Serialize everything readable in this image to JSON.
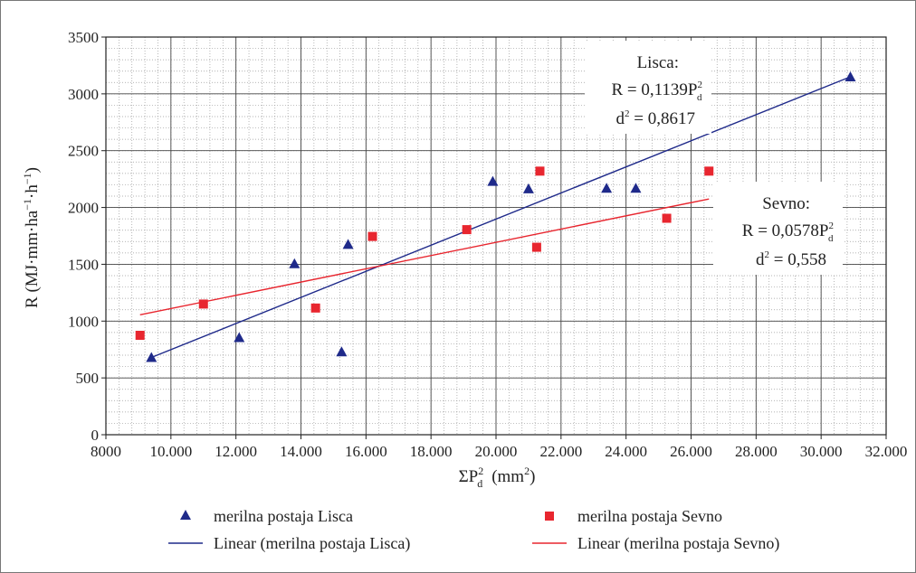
{
  "chart_data": {
    "type": "scatter",
    "xlabel": "ΣP",
    "xlabel_sup": "2",
    "xlabel_sub": "d",
    "xlabel_unit": "(mm",
    "xlabel_unit_sup": "2",
    "xlabel_unit_close": ")",
    "ylabel": "R (MJ·mm·ha⁻¹·h⁻¹)",
    "xlim": [
      8000,
      32000
    ],
    "ylim": [
      0,
      3500
    ],
    "x_ticks": [
      8000,
      10000,
      12000,
      14000,
      16000,
      18000,
      20000,
      22000,
      24000,
      26000,
      28000,
      30000,
      32000
    ],
    "x_tick_labels": [
      "8000",
      "10.000",
      "12.000",
      "14.000",
      "16.000",
      "18.000",
      "20.000",
      "22.000",
      "24.000",
      "26.000",
      "28.000",
      "30.000",
      "32.000"
    ],
    "y_ticks": [
      0,
      500,
      1000,
      1500,
      2000,
      2500,
      3000,
      3500
    ],
    "y_tick_labels": [
      "0",
      "500",
      "1000",
      "1500",
      "2000",
      "2500",
      "3000",
      "3500"
    ],
    "grid": true,
    "series": [
      {
        "name": "merilna postaja Lisca",
        "marker": "triangle",
        "color": "#1f2a8a",
        "points": [
          [
            9400,
            680
          ],
          [
            12100,
            855
          ],
          [
            13800,
            1505
          ],
          [
            15250,
            730
          ],
          [
            15450,
            1675
          ],
          [
            19900,
            2230
          ],
          [
            21000,
            2165
          ],
          [
            23400,
            2170
          ],
          [
            24300,
            2170
          ],
          [
            30900,
            3150
          ]
        ]
      },
      {
        "name": "merilna postaja Sevno",
        "marker": "square",
        "color": "#e8262f",
        "points": [
          [
            9050,
            875
          ],
          [
            11000,
            1150
          ],
          [
            14450,
            1115
          ],
          [
            16200,
            1745
          ],
          [
            19100,
            1805
          ],
          [
            21250,
            1650
          ],
          [
            21350,
            2320
          ],
          [
            25250,
            1905
          ],
          [
            26550,
            2320
          ]
        ]
      }
    ],
    "trendlines": [
      {
        "name": "Linear (merilna postaja Lisca)",
        "color": "#1f2a8a",
        "from": [
          9400,
          680
        ],
        "to": [
          30900,
          3150
        ]
      },
      {
        "name": "Linear (merilna postaja Sevno)",
        "color": "#e8262f",
        "from": [
          9050,
          1055
        ],
        "to": [
          26550,
          2075
        ]
      }
    ],
    "annotations": [
      {
        "id": "lisca",
        "title": "Lisca:",
        "eq_prefix": "R = 0,1139P",
        "eq_sup": "2",
        "eq_sub": "d",
        "r2_prefix": "d",
        "r2_sup": "2",
        "r2_value": " = 0,8617"
      },
      {
        "id": "sevno",
        "title": "Sevno:",
        "eq_prefix": "R = 0,0578P",
        "eq_sup": "2",
        "eq_sub": "d",
        "r2_prefix": "d",
        "r2_sup": "2",
        "r2_value": " = 0,558"
      }
    ],
    "legend": {
      "position": "bottom",
      "entries": [
        {
          "label": "merilna postaja Lisca",
          "symbol": "triangle",
          "color": "#1f2a8a"
        },
        {
          "label": "merilna postaja Sevno",
          "symbol": "square",
          "color": "#e8262f"
        },
        {
          "label": "Linear (merilna postaja Lisca)",
          "symbol": "line",
          "color": "#1f2a8a"
        },
        {
          "label": "Linear (merilna postaja Sevno)",
          "symbol": "line",
          "color": "#e8262f"
        }
      ]
    }
  }
}
